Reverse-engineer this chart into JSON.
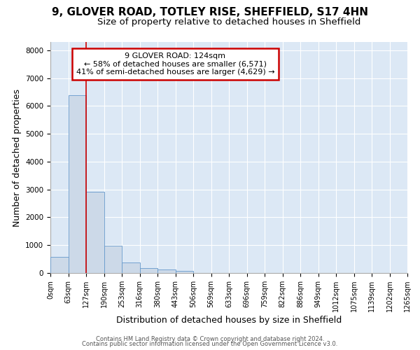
{
  "title_line1": "9, GLOVER ROAD, TOTLEY RISE, SHEFFIELD, S17 4HN",
  "title_line2": "Size of property relative to detached houses in Sheffield",
  "xlabel": "Distribution of detached houses by size in Sheffield",
  "ylabel": "Number of detached properties",
  "bar_values": [
    570,
    6400,
    2930,
    980,
    380,
    175,
    120,
    80,
    0,
    0,
    0,
    0,
    0,
    0,
    0,
    0,
    0,
    0,
    0,
    0
  ],
  "bin_labels": [
    "0sqm",
    "63sqm",
    "127sqm",
    "190sqm",
    "253sqm",
    "316sqm",
    "380sqm",
    "443sqm",
    "506sqm",
    "569sqm",
    "633sqm",
    "696sqm",
    "759sqm",
    "822sqm",
    "886sqm",
    "949sqm",
    "1012sqm",
    "1075sqm",
    "1139sqm",
    "1202sqm",
    "1265sqm"
  ],
  "bar_color": "#ccd9e8",
  "bar_edge_color": "#6699cc",
  "subject_line_color": "#cc0000",
  "annotation_text": "9 GLOVER ROAD: 124sqm\n← 58% of detached houses are smaller (6,571)\n41% of semi-detached houses are larger (4,629) →",
  "annotation_box_color": "#ffffff",
  "annotation_box_edge": "#cc0000",
  "ylim": [
    0,
    8300
  ],
  "yticks": [
    0,
    1000,
    2000,
    3000,
    4000,
    5000,
    6000,
    7000,
    8000
  ],
  "footer_line1": "Contains HM Land Registry data © Crown copyright and database right 2024.",
  "footer_line2": "Contains public sector information licensed under the Open Government Licence v3.0.",
  "bg_color": "#dce8f5",
  "grid_color": "#ffffff",
  "title_fontsize": 11,
  "subtitle_fontsize": 9.5,
  "axis_label_fontsize": 9,
  "tick_fontsize": 7,
  "annotation_fontsize": 8,
  "footer_fontsize": 6
}
